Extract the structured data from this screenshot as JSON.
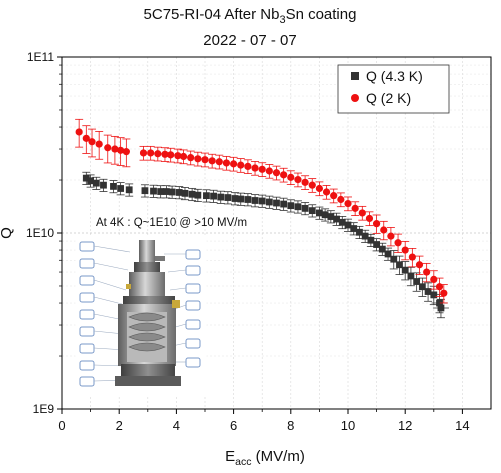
{
  "chart_data": {
    "type": "scatter",
    "title": "5C75-RI-04 After Nb3Sn coating",
    "title_parts": {
      "prefix": "5C75-RI-04 After Nb",
      "sub": "3",
      "suffix": "Sn coating"
    },
    "subtitle": "2022 - 07 - 07",
    "xlabel": "E",
    "xlabel_sub": "acc",
    "xlabel_units": " (MV/m)",
    "ylabel": "Q",
    "xlim": [
      0,
      15
    ],
    "ylim": [
      1000000000,
      100000000000
    ],
    "yscale": "log",
    "x_ticks": [
      "0",
      "2",
      "4",
      "6",
      "8",
      "10",
      "12",
      "14"
    ],
    "y_ticks": [
      "1E9",
      "1E10",
      "1E11"
    ],
    "grid": true,
    "legend_position": "top-right",
    "series": [
      {
        "name": "Q (4.3 K)",
        "marker": "square",
        "color": "#333333",
        "points": [
          [
            0.85,
            20500000000.0
          ],
          [
            1.0,
            19800000000.0
          ],
          [
            1.2,
            19200000000.0
          ],
          [
            1.45,
            18700000000.0
          ],
          [
            1.8,
            18400000000.0
          ],
          [
            2.05,
            17900000000.0
          ],
          [
            2.35,
            17600000000.0
          ],
          [
            2.9,
            17400000000.0
          ],
          [
            3.2,
            17300000000.0
          ],
          [
            3.45,
            17200000000.0
          ],
          [
            3.65,
            17200000000.0
          ],
          [
            3.85,
            17100000000.0
          ],
          [
            4.1,
            17000000000.0
          ],
          [
            4.3,
            16800000000.0
          ],
          [
            4.55,
            16600000000.0
          ],
          [
            4.75,
            16400000000.0
          ],
          [
            5.05,
            16300000000.0
          ],
          [
            5.3,
            16200000000.0
          ],
          [
            5.55,
            16000000000.0
          ],
          [
            5.8,
            15900000000.0
          ],
          [
            6.05,
            15700000000.0
          ],
          [
            6.25,
            15600000000.0
          ],
          [
            6.5,
            15500000000.0
          ],
          [
            6.75,
            15300000000.0
          ],
          [
            7.0,
            15200000000.0
          ],
          [
            7.25,
            15000000000.0
          ],
          [
            7.5,
            14800000000.0
          ],
          [
            7.75,
            14600000000.0
          ],
          [
            8.0,
            14300000000.0
          ],
          [
            8.25,
            14100000000.0
          ],
          [
            8.5,
            13800000000.0
          ],
          [
            8.75,
            13400000000.0
          ],
          [
            9.0,
            13000000000.0
          ],
          [
            9.2,
            12700000000.0
          ],
          [
            9.4,
            12400000000.0
          ],
          [
            9.6,
            12000000000.0
          ],
          [
            9.8,
            11500000000.0
          ],
          [
            10.0,
            11100000000.0
          ],
          [
            10.2,
            10600000000.0
          ],
          [
            10.4,
            10100000000.0
          ],
          [
            10.6,
            9600000000.0
          ],
          [
            10.8,
            9100000000.0
          ],
          [
            11.0,
            8600000000.0
          ],
          [
            11.2,
            8100000000.0
          ],
          [
            11.4,
            7600000000.0
          ],
          [
            11.6,
            7100000000.0
          ],
          [
            11.8,
            6600000000.0
          ],
          [
            12.0,
            6150000000.0
          ],
          [
            12.2,
            5700000000.0
          ],
          [
            12.4,
            5300000000.0
          ],
          [
            12.6,
            4950000000.0
          ],
          [
            12.8,
            4650000000.0
          ],
          [
            13.0,
            4450000000.0
          ],
          [
            13.2,
            4000000000.0
          ],
          [
            13.25,
            3750000000.0
          ]
        ]
      },
      {
        "name": "Q (2 K)",
        "marker": "circle",
        "color": "#ee1111",
        "points": [
          [
            0.6,
            37500000000.0
          ],
          [
            0.85,
            34500000000.0
          ],
          [
            1.05,
            33000000000.0
          ],
          [
            1.3,
            32000000000.0
          ],
          [
            1.6,
            30500000000.0
          ],
          [
            1.85,
            30000000000.0
          ],
          [
            2.05,
            29500000000.0
          ],
          [
            2.25,
            29000000000.0
          ],
          [
            2.85,
            28500000000.0
          ],
          [
            3.1,
            28500000000.0
          ],
          [
            3.35,
            28200000000.0
          ],
          [
            3.6,
            28000000000.0
          ],
          [
            3.8,
            27800000000.0
          ],
          [
            4.05,
            27500000000.0
          ],
          [
            4.25,
            27200000000.0
          ],
          [
            4.5,
            26800000000.0
          ],
          [
            4.75,
            26400000000.0
          ],
          [
            5.0,
            26100000000.0
          ],
          [
            5.25,
            25700000000.0
          ],
          [
            5.5,
            25400000000.0
          ],
          [
            5.75,
            25000000000.0
          ],
          [
            6.0,
            24700000000.0
          ],
          [
            6.25,
            24300000000.0
          ],
          [
            6.5,
            23900000000.0
          ],
          [
            6.75,
            23400000000.0
          ],
          [
            7.0,
            23000000000.0
          ],
          [
            7.25,
            22500000000.0
          ],
          [
            7.5,
            22000000000.0
          ],
          [
            7.75,
            21400000000.0
          ],
          [
            8.0,
            20700000000.0
          ],
          [
            8.25,
            20100000000.0
          ],
          [
            8.5,
            19400000000.0
          ],
          [
            8.75,
            18700000000.0
          ],
          [
            9.0,
            17900000000.0
          ],
          [
            9.25,
            17100000000.0
          ],
          [
            9.5,
            16300000000.0
          ],
          [
            9.75,
            15500000000.0
          ],
          [
            10.0,
            14700000000.0
          ],
          [
            10.25,
            13800000000.0
          ],
          [
            10.5,
            13000000000.0
          ],
          [
            10.75,
            12100000000.0
          ],
          [
            11.0,
            11300000000.0
          ],
          [
            11.25,
            10400000000.0
          ],
          [
            11.5,
            9600000000.0
          ],
          [
            11.75,
            8800000000.0
          ],
          [
            12.0,
            8000000000.0
          ],
          [
            12.25,
            7300000000.0
          ],
          [
            12.5,
            6600000000.0
          ],
          [
            12.75,
            6000000000.0
          ],
          [
            13.0,
            5450000000.0
          ],
          [
            13.2,
            4950000000.0
          ],
          [
            13.35,
            4550000000.0
          ]
        ]
      }
    ],
    "annotation": "At 4K : Q~1E10 @ >10 MV/m"
  }
}
